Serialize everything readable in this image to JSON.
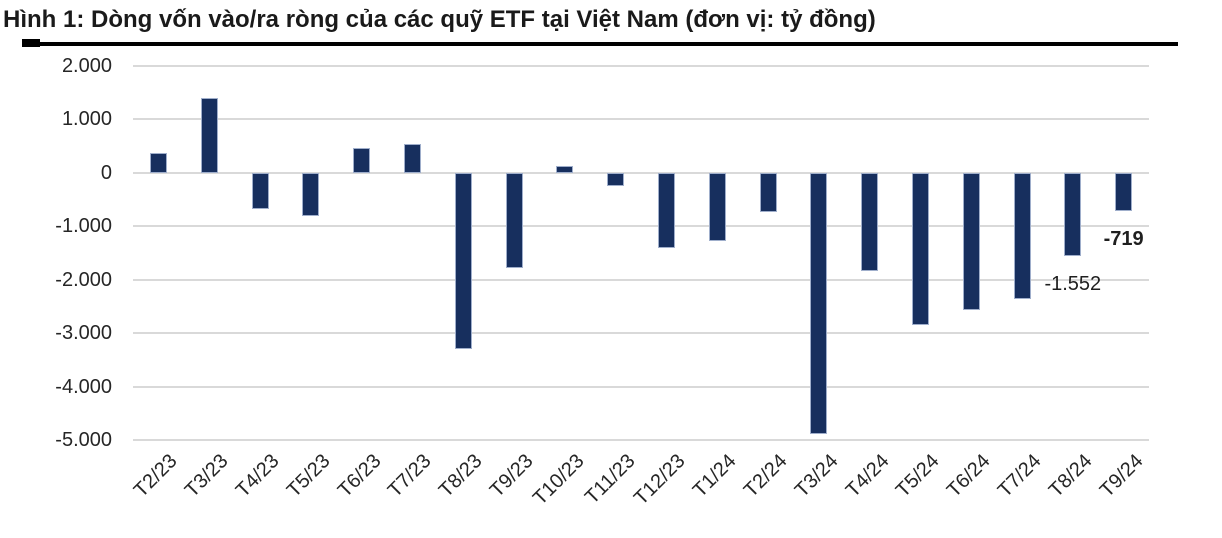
{
  "figure": {
    "title": "Hình 1: Dòng vốn vào/ra ròng của các quỹ ETF tại Việt Nam (đơn vị: tỷ đồng)"
  },
  "chart_data": {
    "type": "bar",
    "title": "Dòng vốn vào/ra ròng của các quỹ ETF tại Việt Nam",
    "unit": "tỷ đồng",
    "xlabel": "",
    "ylabel": "",
    "grid": true,
    "legend": "none",
    "ylim": [
      -5000,
      2000
    ],
    "yticks": [
      2000,
      1000,
      0,
      -1000,
      -2000,
      -3000,
      -4000,
      -5000
    ],
    "ytick_labels": [
      "2.000",
      "1.000",
      "0",
      "-1.000",
      "-2.000",
      "-3.000",
      "-4.000",
      "-5.000"
    ],
    "categories": [
      "T2/23",
      "T3/23",
      "T4/23",
      "T5/23",
      "T6/23",
      "T7/23",
      "T8/23",
      "T9/23",
      "T10/23",
      "T11/23",
      "T12/23",
      "T1/24",
      "T2/24",
      "T3/24",
      "T4/24",
      "T5/24",
      "T6/24",
      "T7/24",
      "T8/24",
      "T9/24"
    ],
    "values": [
      380,
      1400,
      -670,
      -810,
      460,
      540,
      -3300,
      -1780,
      130,
      -240,
      -1400,
      -1270,
      -730,
      -4880,
      -1840,
      -2850,
      -2570,
      -2370,
      -1552,
      -719
    ],
    "annotations": [
      {
        "category": "T8/24",
        "label": "-1.552",
        "bold": false
      },
      {
        "category": "T9/24",
        "label": "-719",
        "bold": true
      }
    ],
    "colors": {
      "bar_fill": "#172F5E",
      "bar_border": "#9FAECB",
      "gridline": "#D9D9D9",
      "title_text": "#1A1A1A",
      "axis_text": "#262626"
    }
  }
}
